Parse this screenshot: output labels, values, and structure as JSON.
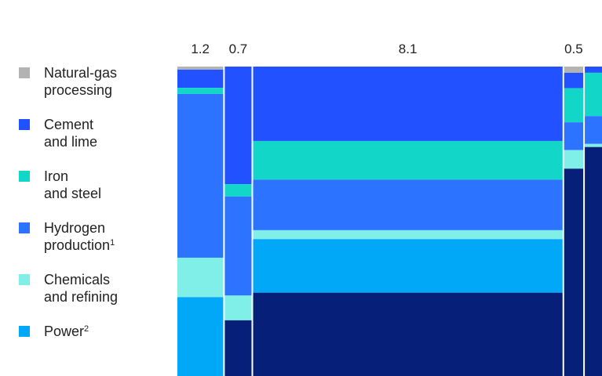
{
  "chart_data": {
    "type": "bar",
    "subtype": "marimekko (stacked 100%, variable width)",
    "categories": [
      "1.2",
      "0.7",
      "8.1",
      "0.5",
      ""
    ],
    "column_widths": [
      1.2,
      0.7,
      8.1,
      0.5,
      0.45
    ],
    "legend_position": "left",
    "grid": false,
    "series": [
      {
        "name": "Natural-gas processing",
        "color": "#b3b3b3",
        "values": [
          1,
          0,
          0,
          2,
          0
        ]
      },
      {
        "name": "Cement and lime",
        "color": "#2251ff",
        "values": [
          6,
          38,
          25,
          5,
          2
        ]
      },
      {
        "name": "Iron and steel",
        "color": "#12d6c8",
        "values": [
          2,
          4,
          13,
          11,
          14
        ]
      },
      {
        "name": "Hydrogen production",
        "color": "#2c74ff",
        "values": [
          54,
          32,
          17,
          9,
          9
        ]
      },
      {
        "name": "Chemicals and refining",
        "color": "#7fefe8",
        "values": [
          13,
          8,
          3,
          6,
          1
        ]
      },
      {
        "name": "Power",
        "color": "#00a8f7",
        "values": [
          26,
          0,
          18,
          0,
          0
        ]
      },
      {
        "name": "",
        "color": "#061f79",
        "values": [
          0,
          18,
          28,
          67,
          74
        ]
      }
    ]
  },
  "legend": [
    {
      "lines": [
        "Natural-gas",
        "processing"
      ],
      "sup": "",
      "color": "#b3b3b3"
    },
    {
      "lines": [
        "Cement",
        "and lime"
      ],
      "sup": "",
      "color": "#2251ff"
    },
    {
      "lines": [
        "Iron",
        "and steel"
      ],
      "sup": "",
      "color": "#12d6c8"
    },
    {
      "lines": [
        "Hydrogen",
        "production"
      ],
      "sup": "1",
      "color": "#2c74ff"
    },
    {
      "lines": [
        "Chemicals",
        "and refining"
      ],
      "sup": "",
      "color": "#7fefe8"
    },
    {
      "lines": [
        "Power"
      ],
      "sup": "2",
      "color": "#00a8f7"
    }
  ]
}
